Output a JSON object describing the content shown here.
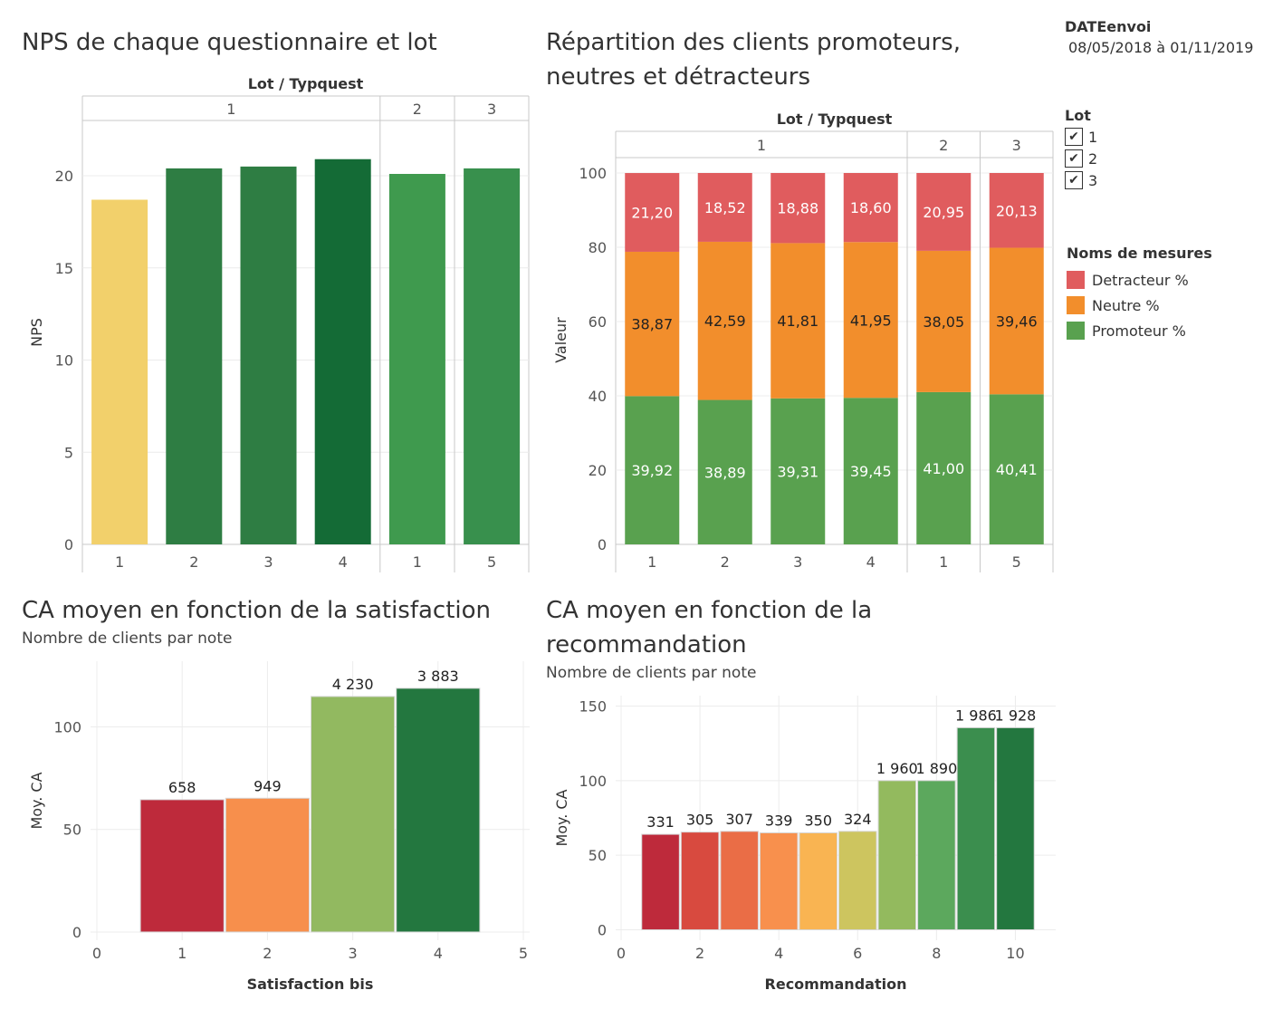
{
  "date_filter": {
    "label": "DATEenvoi",
    "value": "08/05/2018 à 01/11/2019"
  },
  "lot_filter": {
    "label": "Lot",
    "options": [
      {
        "label": "1",
        "checked": true
      },
      {
        "label": "2",
        "checked": true
      },
      {
        "label": "3",
        "checked": true
      }
    ]
  },
  "measure_legend": {
    "title": "Noms de mesures",
    "items": [
      {
        "label": "Detracteur %",
        "color": "#e05c5e"
      },
      {
        "label": "Neutre %",
        "color": "#f28e2c"
      },
      {
        "label": "Promoteur %",
        "color": "#59a14f"
      }
    ]
  },
  "chart1": {
    "title": "NPS de chaque questionnaire et lot"
  },
  "chart2": {
    "title_line1": "Répartition des clients promoteurs,",
    "title_line2": "neutres et détracteurs"
  },
  "chart3": {
    "title": "CA moyen en fonction de la satisfaction",
    "subtitle": "Nombre de clients par note"
  },
  "chart4": {
    "title_line1": "CA moyen en fonction de la",
    "title_line2": "recommandation",
    "subtitle": "Nombre de clients par note"
  },
  "chart_data": [
    {
      "type": "bar",
      "header": "Lot / Typquest",
      "groups": [
        {
          "lot": "1",
          "categories": [
            "1",
            "2",
            "3",
            "4"
          ]
        },
        {
          "lot": "2",
          "categories": [
            "1"
          ]
        },
        {
          "lot": "3",
          "categories": [
            "5"
          ]
        }
      ],
      "values": [
        18.7,
        20.4,
        20.5,
        20.9,
        20.1,
        20.4
      ],
      "colors": [
        "#f2d06b",
        "#2e7d43",
        "#2e7d43",
        "#146b36",
        "#3f9a4e",
        "#38904d"
      ],
      "ylabel": "NPS",
      "ylim": [
        0,
        23
      ],
      "yticks": [
        0,
        5,
        10,
        15,
        20
      ],
      "ytick_labels": [
        "0",
        "5",
        "10",
        "15",
        "20"
      ]
    },
    {
      "type": "bar",
      "stacked": true,
      "header": "Lot / Typquest",
      "groups": [
        {
          "lot": "1",
          "categories": [
            "1",
            "2",
            "3",
            "4"
          ]
        },
        {
          "lot": "2",
          "categories": [
            "1"
          ]
        },
        {
          "lot": "3",
          "categories": [
            "5"
          ]
        }
      ],
      "ylabel": "Valeur",
      "ylim": [
        0,
        110
      ],
      "yticks": [
        0,
        20,
        40,
        60,
        80,
        100
      ],
      "ytick_labels": [
        "0",
        "20",
        "40",
        "60",
        "80",
        "100"
      ],
      "series": [
        {
          "name": "Promoteur %",
          "color": "#59a14f",
          "values": [
            39.92,
            38.89,
            39.31,
            39.45,
            41.0,
            40.41
          ],
          "labels": [
            "39,92",
            "38,89",
            "39,31",
            "39,45",
            "41,00",
            "40,41"
          ]
        },
        {
          "name": "Neutre %",
          "color": "#f28e2c",
          "values": [
            38.87,
            42.59,
            41.81,
            41.95,
            38.05,
            39.46
          ],
          "labels": [
            "38,87",
            "42,59",
            "41,81",
            "41,95",
            "38,05",
            "39,46"
          ]
        },
        {
          "name": "Detracteur %",
          "color": "#e05c5e",
          "values": [
            21.2,
            18.52,
            18.88,
            18.6,
            20.95,
            20.13
          ],
          "labels": [
            "21,20",
            "18,52",
            "18,88",
            "18,60",
            "20,95",
            "20,13"
          ]
        }
      ]
    },
    {
      "type": "bar",
      "x": [
        1,
        2,
        3,
        4
      ],
      "values": [
        64.5,
        65.2,
        114.8,
        118.8
      ],
      "bar_labels": [
        "658",
        "949",
        "4 230",
        "3 883"
      ],
      "colors": [
        "#be2a3b",
        "#f78f4c",
        "#92b960",
        "#23773f"
      ],
      "xlabel": "Satisfaction bis",
      "ylabel": "Moy. CA",
      "xlim": [
        0,
        5
      ],
      "ylim": [
        -4,
        132
      ],
      "xticks": [
        0,
        1,
        2,
        3,
        4,
        5
      ],
      "xtick_labels": [
        "0",
        "1",
        "2",
        "3",
        "4",
        "5"
      ],
      "yticks": [
        0,
        50,
        100
      ],
      "ytick_labels": [
        "0",
        "50",
        "100"
      ]
    },
    {
      "type": "bar",
      "x": [
        1,
        2,
        3,
        4,
        5,
        6,
        7,
        8,
        9,
        10
      ],
      "values": [
        64,
        65.5,
        66,
        65,
        65,
        66,
        100,
        100,
        135.5,
        135.5
      ],
      "bar_labels": [
        "331",
        "305",
        "307",
        "339",
        "350",
        "324",
        "1 960",
        "1 890",
        "1 986",
        "1 928"
      ],
      "colors": [
        "#be2a3b",
        "#d84a3f",
        "#ea6d46",
        "#f8904d",
        "#f9b452",
        "#cdc55f",
        "#93ba5e",
        "#5ca85d",
        "#3b8e4e",
        "#23773f"
      ],
      "xlabel": "Recommandation",
      "ylabel": "Moy. CA",
      "xlim": [
        0,
        11
      ],
      "ylim": [
        -7,
        157
      ],
      "xticks": [
        0,
        2,
        4,
        6,
        8,
        10
      ],
      "xtick_labels": [
        "0",
        "2",
        "4",
        "6",
        "8",
        "10"
      ],
      "yticks": [
        0,
        50,
        100,
        150
      ],
      "ytick_labels": [
        "0",
        "50",
        "100",
        "150"
      ]
    }
  ]
}
